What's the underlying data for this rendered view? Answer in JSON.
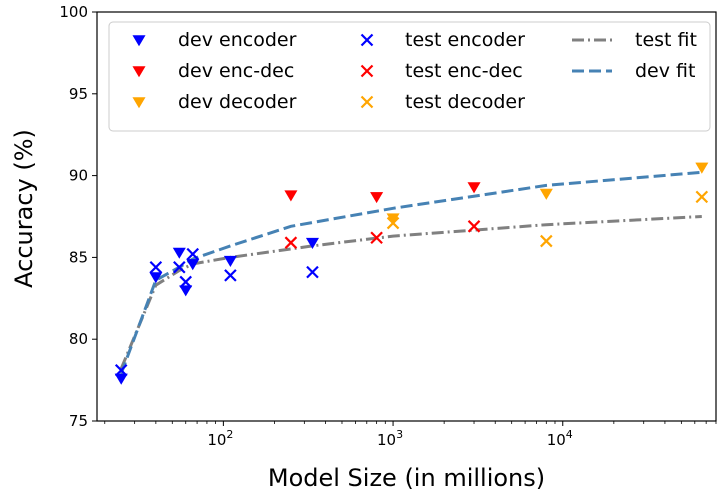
{
  "chart_data": {
    "type": "scatter",
    "xlabel": "Model Size (in millions)",
    "ylabel": "Accuracy (%)",
    "x_scale": "log",
    "xlim": [
      18,
      80000
    ],
    "ylim": [
      75,
      100
    ],
    "x_ticks": [
      {
        "value": 100,
        "base": "10",
        "exp": "2"
      },
      {
        "value": 1000,
        "base": "10",
        "exp": "3"
      },
      {
        "value": 10000,
        "base": "10",
        "exp": "4"
      }
    ],
    "y_ticks": [
      75,
      80,
      85,
      90,
      95,
      100
    ],
    "y_tick_labels": [
      "75",
      "80",
      "85",
      "90",
      "95",
      "100"
    ],
    "grid": false,
    "legend_position": "top",
    "colors": {
      "encoder": "#0000ff",
      "enc_dec": "#ff0000",
      "decoder": "#ffa500",
      "test_fit": "#808080",
      "dev_fit": "#4682b4"
    },
    "series": [
      {
        "name": "dev encoder",
        "marker": "triangle-down",
        "color": "#0000ff",
        "points": [
          [
            25,
            77.6
          ],
          [
            40,
            83.8
          ],
          [
            55,
            85.3
          ],
          [
            60,
            83.0
          ],
          [
            66,
            84.6
          ],
          [
            110,
            84.8
          ],
          [
            335,
            85.9
          ]
        ]
      },
      {
        "name": "dev enc-dec",
        "marker": "triangle-down",
        "color": "#ff0000",
        "points": [
          [
            250,
            88.8
          ],
          [
            800,
            88.7
          ],
          [
            3000,
            89.3
          ]
        ]
      },
      {
        "name": "dev decoder",
        "marker": "triangle-down",
        "color": "#ffa500",
        "points": [
          [
            1000,
            87.4
          ],
          [
            8000,
            88.9
          ],
          [
            66000,
            90.5
          ]
        ]
      },
      {
        "name": "test encoder",
        "marker": "x",
        "color": "#0000ff",
        "points": [
          [
            25,
            78.1
          ],
          [
            40,
            84.4
          ],
          [
            55,
            84.4
          ],
          [
            60,
            83.5
          ],
          [
            66,
            85.2
          ],
          [
            110,
            83.9
          ],
          [
            335,
            84.1
          ]
        ]
      },
      {
        "name": "test enc-dec",
        "marker": "x",
        "color": "#ff0000",
        "points": [
          [
            250,
            85.9
          ],
          [
            800,
            86.2
          ],
          [
            3000,
            86.9
          ]
        ]
      },
      {
        "name": "test decoder",
        "marker": "x",
        "color": "#ffa500",
        "points": [
          [
            1000,
            87.1
          ],
          [
            8000,
            86.0
          ],
          [
            66000,
            88.7
          ]
        ]
      },
      {
        "name": "test fit",
        "style": "dashdot",
        "color": "#808080",
        "points": [
          [
            25,
            78.2
          ],
          [
            40,
            83.3
          ],
          [
            55,
            84.2
          ],
          [
            66,
            84.6
          ],
          [
            110,
            85.0
          ],
          [
            335,
            85.7
          ],
          [
            1000,
            86.3
          ],
          [
            8000,
            87.0
          ],
          [
            66000,
            87.5
          ]
        ]
      },
      {
        "name": "dev fit",
        "style": "dashed",
        "color": "#4682b4",
        "points": [
          [
            25,
            77.9
          ],
          [
            40,
            83.6
          ],
          [
            55,
            84.4
          ],
          [
            66,
            84.9
          ],
          [
            110,
            85.7
          ],
          [
            250,
            86.9
          ],
          [
            1000,
            88.0
          ],
          [
            8000,
            89.4
          ],
          [
            66000,
            90.2
          ]
        ]
      }
    ]
  }
}
